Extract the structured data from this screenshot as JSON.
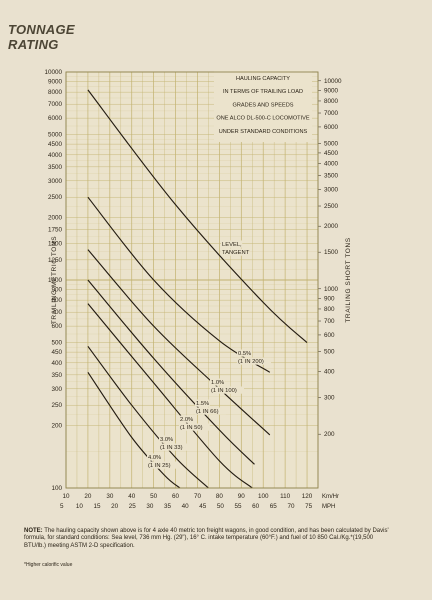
{
  "page": {
    "title_line1": "TONNAGE",
    "title_line2": "RATING",
    "note_label": "NOTE:",
    "note_text": "The hauling capacity shown above is for 4 axle 40 metric ton freight wagons, in good condition, and has been calculated by Davis' formula, for standard conditions: Sea level, 736 mm Hg. (29\"), 16° C. intake temperature (60°F.) and fuel of 10 850 Cal./Kg.*(19,500 BTU/lb.) meeting ASTM 2-D specification.",
    "footnote": "*Higher calorific value"
  },
  "chart_data": {
    "type": "line",
    "title_lines": [
      "HAULING CAPACITY",
      "IN TERMS OF TRAILING LOAD",
      "GRADES AND SPEEDS",
      "ONE ALCO DL-500-C LOCOMOTIVE",
      "UNDER STANDARD CONDITIONS"
    ],
    "ylabel_left": "TRAILING METRIC TONS",
    "ylabel_right": "TRAILING SHORT TONS",
    "x_kmh_ticks": [
      "10",
      "20",
      "30",
      "40",
      "50",
      "60",
      "70",
      "80",
      "90",
      "100",
      "110",
      "120"
    ],
    "x_kmh_unit": "Km/Hr",
    "x_mph_ticks": [
      "5",
      "10",
      "15",
      "20",
      "25",
      "30",
      "35",
      "40",
      "45",
      "50",
      "55",
      "60",
      "65",
      "70",
      "75"
    ],
    "x_mph_unit": "MPH",
    "y_scale": "log",
    "ylim_metric": [
      100,
      10000
    ],
    "y_left_ticks": [
      100,
      200,
      250,
      300,
      350,
      400,
      450,
      500,
      600,
      700,
      800,
      900,
      1000,
      1250,
      1500,
      1750,
      2000,
      2500,
      3000,
      3500,
      4000,
      4500,
      5000,
      6000,
      7000,
      8000,
      9000,
      10000
    ],
    "y_right_ticks": [
      200,
      300,
      400,
      500,
      600,
      700,
      800,
      900,
      1000,
      1500,
      2000,
      2500,
      3000,
      3500,
      4000,
      4500,
      5000,
      6000,
      7000,
      8000,
      9000,
      10000
    ],
    "series": [
      {
        "name": "LEVEL, TANGENT",
        "label_lines": [
          "LEVEL,",
          "TANGENT"
        ],
        "x_kmh": [
          20,
          60,
          100,
          120
        ],
        "y_metric": [
          8200,
          2300,
          780,
          500
        ]
      },
      {
        "name": "0.5% (1 IN 200)",
        "label_lines": [
          "0.5%",
          "(1 IN 200)"
        ],
        "x_kmh": [
          20,
          50,
          80,
          103
        ],
        "y_metric": [
          2500,
          1000,
          510,
          360
        ]
      },
      {
        "name": "1.0% (1 IN 100)",
        "label_lines": [
          "1.0%",
          "(1 IN 100)"
        ],
        "x_kmh": [
          20,
          50,
          80,
          103
        ],
        "y_metric": [
          1400,
          600,
          300,
          180
        ]
      },
      {
        "name": "1.5% (1 IN 66)",
        "label_lines": [
          "1.5%",
          "(1 IN 66)"
        ],
        "x_kmh": [
          20,
          50,
          80,
          96
        ],
        "y_metric": [
          1000,
          420,
          190,
          130
        ]
      },
      {
        "name": "2.0% (1 IN 50)",
        "label_lines": [
          "2.0%",
          "(1 IN 50)"
        ],
        "x_kmh": [
          20,
          50,
          80,
          95
        ],
        "y_metric": [
          770,
          320,
          135,
          100
        ]
      },
      {
        "name": "3.0% (1 IN 33)",
        "label_lines": [
          "3.0%",
          "(1 IN 33)"
        ],
        "x_kmh": [
          20,
          40,
          60,
          75
        ],
        "y_metric": [
          480,
          250,
          140,
          100
        ]
      },
      {
        "name": "4.0% (1 IN 25)",
        "label_lines": [
          "4.0%",
          "(1 IN 25)"
        ],
        "x_kmh": [
          20,
          40,
          55,
          62
        ],
        "y_metric": [
          360,
          175,
          115,
          100
        ]
      }
    ],
    "grid": true,
    "colors": {
      "grid": "#c2b26f",
      "line": "#241c12",
      "paper": "#e9e1cf"
    }
  }
}
